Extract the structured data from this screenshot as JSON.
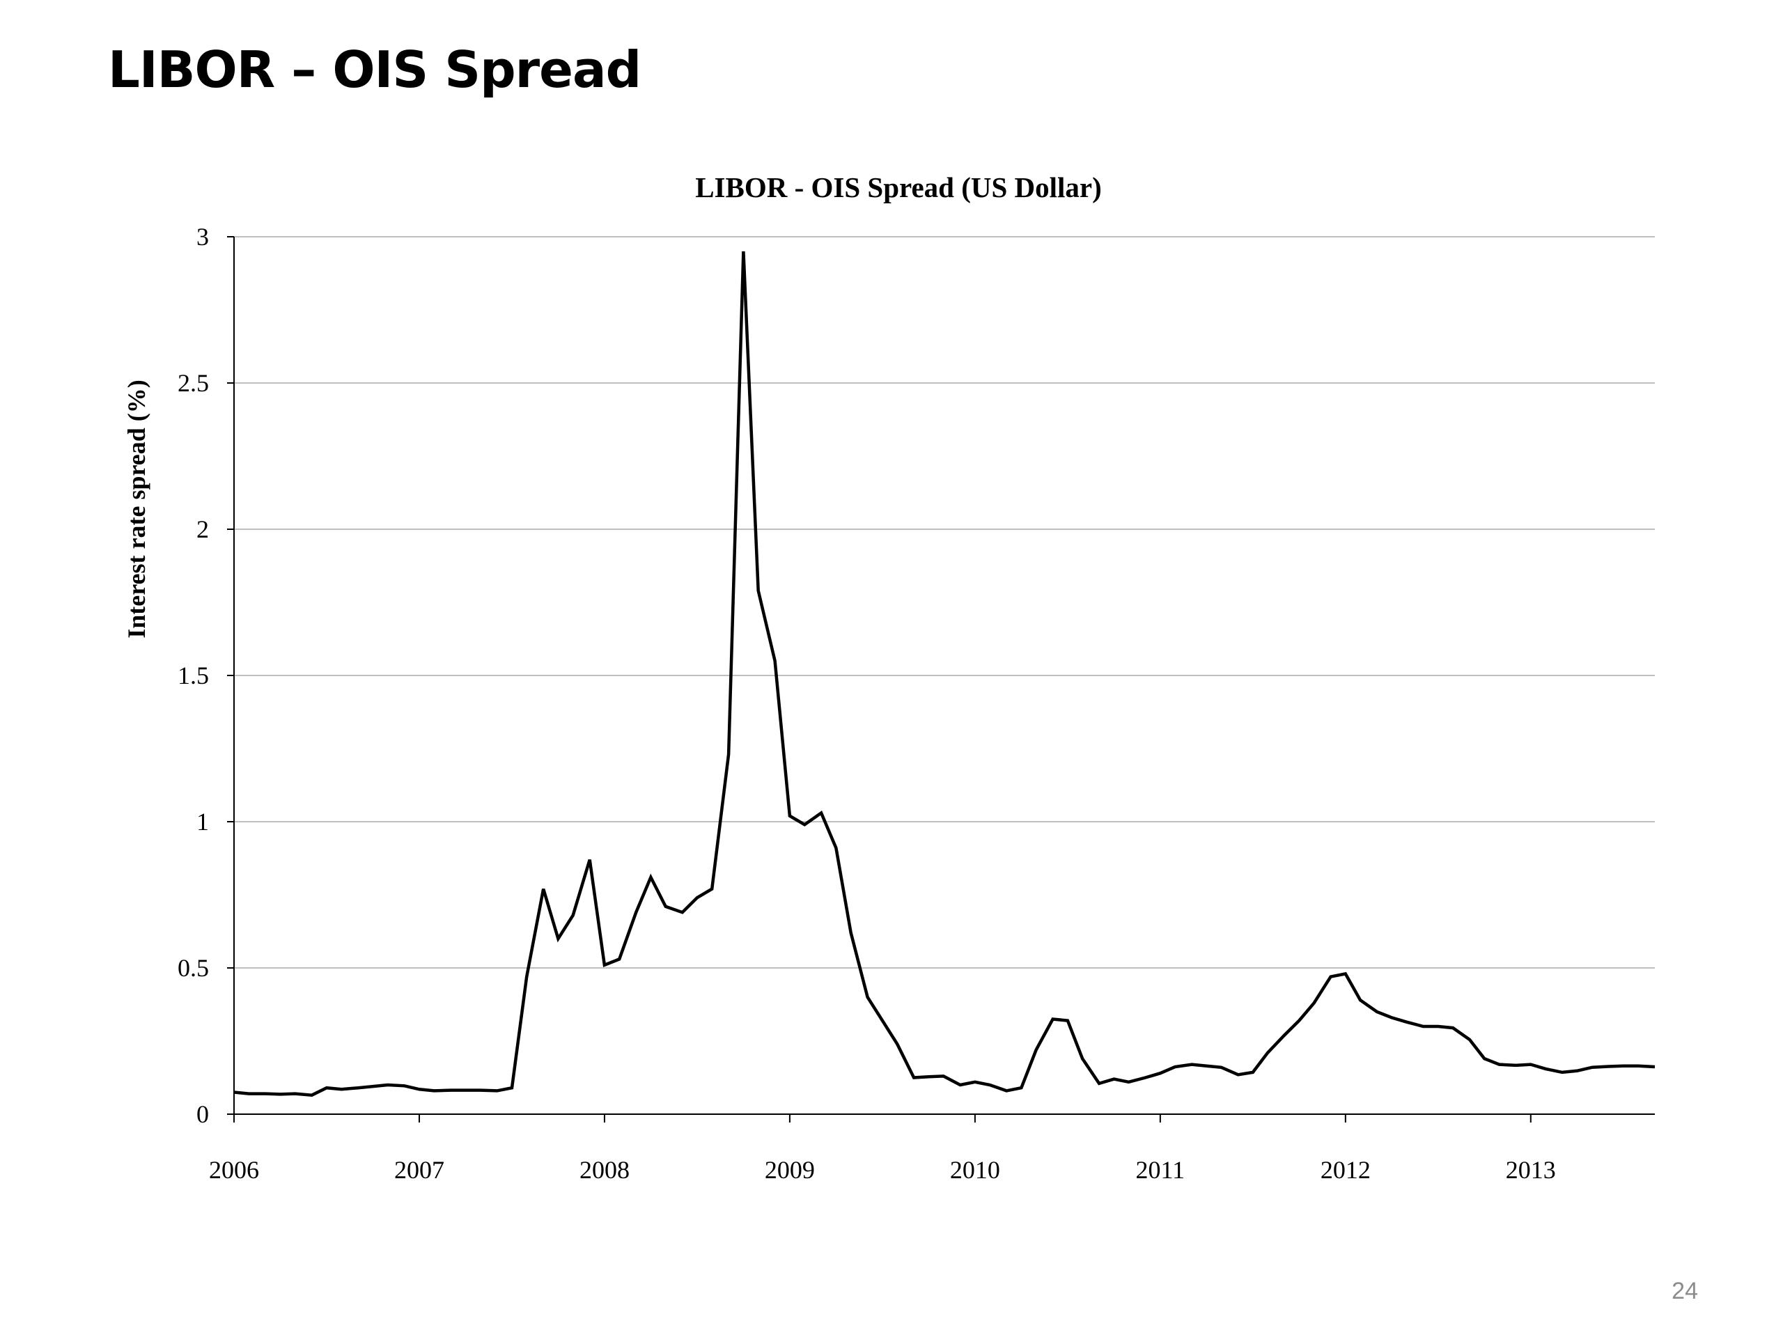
{
  "slide": {
    "title": "LIBOR – OIS Spread",
    "page_number": "24"
  },
  "chart_data": {
    "type": "line",
    "title": "LIBOR - OIS Spread (US Dollar)",
    "xlabel": "",
    "ylabel": "Interest rate spread (%)",
    "xlim": [
      2006.0,
      2013.67
    ],
    "ylim": [
      0,
      3
    ],
    "x_ticks": [
      2006,
      2007,
      2008,
      2009,
      2010,
      2011,
      2012,
      2013
    ],
    "x_tick_labels": [
      "2006",
      "2007",
      "2008",
      "2009",
      "2010",
      "2011",
      "2012",
      "2013"
    ],
    "y_ticks": [
      0,
      0.5,
      1,
      1.5,
      2,
      2.5,
      3
    ],
    "y_tick_labels": [
      "0",
      "0.5",
      "1",
      "1.5",
      "2",
      "2.5",
      "3"
    ],
    "grid": true,
    "legend": "none",
    "line_color": "#000000",
    "series": [
      {
        "x": [
          2006.0,
          2006.08,
          2006.17,
          2006.25,
          2006.33,
          2006.42,
          2006.5,
          2006.58,
          2006.67,
          2006.75,
          2006.83,
          2006.92,
          2007.0,
          2007.08,
          2007.17,
          2007.25,
          2007.33,
          2007.42,
          2007.5,
          2007.58,
          2007.67,
          2007.75,
          2007.83,
          2007.92,
          2008.0,
          2008.08,
          2008.17,
          2008.25,
          2008.33,
          2008.42,
          2008.5,
          2008.58,
          2008.67,
          2008.75,
          2008.83,
          2008.92,
          2009.0,
          2009.08,
          2009.17,
          2009.25,
          2009.33,
          2009.42,
          2009.5,
          2009.58,
          2009.67,
          2009.75,
          2009.83,
          2009.92,
          2010.0,
          2010.08,
          2010.17,
          2010.25,
          2010.33,
          2010.42,
          2010.5,
          2010.58,
          2010.67,
          2010.75,
          2010.83,
          2010.92,
          2011.0,
          2011.08,
          2011.17,
          2011.25,
          2011.33,
          2011.42,
          2011.5,
          2011.58,
          2011.67,
          2011.75,
          2011.83,
          2011.92,
          2012.0,
          2012.08,
          2012.17,
          2012.25,
          2012.33,
          2012.42,
          2012.5,
          2012.58,
          2012.67,
          2012.75,
          2012.83,
          2012.92,
          2013.0,
          2013.08,
          2013.17,
          2013.25,
          2013.33,
          2013.42,
          2013.5,
          2013.58,
          2013.67
        ],
        "values": [
          0.075,
          0.07,
          0.07,
          0.068,
          0.07,
          0.065,
          0.09,
          0.085,
          0.09,
          0.095,
          0.1,
          0.097,
          0.085,
          0.08,
          0.082,
          0.082,
          0.082,
          0.08,
          0.09,
          0.47,
          0.77,
          0.6,
          0.68,
          0.87,
          0.51,
          0.53,
          0.69,
          0.81,
          0.71,
          0.69,
          0.74,
          0.77,
          1.23,
          2.95,
          1.79,
          1.55,
          1.02,
          0.99,
          1.03,
          0.91,
          0.62,
          0.4,
          0.32,
          0.24,
          0.125,
          0.128,
          0.13,
          0.1,
          0.11,
          0.1,
          0.08,
          0.09,
          0.22,
          0.325,
          0.32,
          0.19,
          0.105,
          0.12,
          0.11,
          0.125,
          0.14,
          0.162,
          0.17,
          0.165,
          0.16,
          0.135,
          0.143,
          0.21,
          0.27,
          0.32,
          0.38,
          0.47,
          0.48,
          0.39,
          0.35,
          0.33,
          0.315,
          0.3,
          0.3,
          0.295,
          0.255,
          0.19,
          0.17,
          0.167,
          0.17,
          0.155,
          0.143,
          0.148,
          0.16,
          0.163,
          0.165,
          0.165,
          0.162
        ]
      }
    ]
  }
}
